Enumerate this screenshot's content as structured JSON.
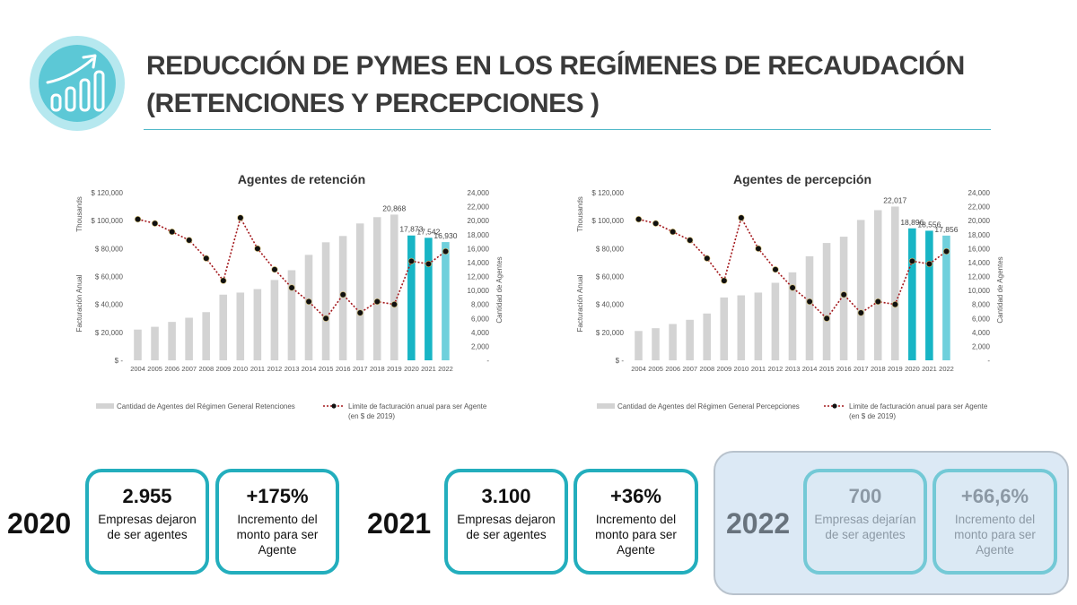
{
  "header": {
    "title_line1": "REDUCCIÓN DE PYMES EN LOS REGÍMENES DE RECAUDACIÓN",
    "title_line2": "(RETENCIONES Y PERCEPCIONES )",
    "accent": "#23aebd",
    "icon": "growth-chart-icon"
  },
  "chart_data": [
    {
      "type": "bar",
      "title": "Agentes de retención",
      "categories": [
        "2004",
        "2005",
        "2006",
        "2007",
        "2008",
        "2009",
        "2010",
        "2011",
        "2012",
        "2013",
        "2014",
        "2015",
        "2016",
        "2017",
        "2018",
        "2019",
        "2020",
        "2021",
        "2022"
      ],
      "left_axis": {
        "label": "Facturación Anual",
        "units_label": "Thousands",
        "ticks": [
          "$ -",
          "$ 20,000",
          "$ 40,000",
          "$ 60,000",
          "$ 80,000",
          "$ 100,000",
          "$ 120,000"
        ],
        "range": [
          0,
          120000
        ]
      },
      "right_axis": {
        "label": "Cantidad de Agentes",
        "ticks": [
          "-",
          "2,000",
          "4,000",
          "6,000",
          "8,000",
          "10,000",
          "12,000",
          "14,000",
          "16,000",
          "18,000",
          "20,000",
          "22,000",
          "24,000"
        ],
        "range": [
          0,
          24000
        ]
      },
      "series": [
        {
          "name": "Cantidad de Agentes del Régimen General Retenciones",
          "kind": "bar",
          "axis": "right",
          "values": [
            4400,
            4800,
            5500,
            6100,
            6900,
            9400,
            9700,
            10200,
            11500,
            12900,
            15100,
            16900,
            17800,
            19600,
            20500,
            20868,
            17873,
            17542,
            16930
          ],
          "labels": [
            "",
            "",
            "",
            "",
            "",
            "",
            "",
            "",
            "",
            "",
            "",
            "",
            "",
            "",
            "",
            "20,868",
            "17,873",
            "17,542",
            "16,930"
          ],
          "colors": [
            "#d3d3d3",
            "#d3d3d3",
            "#d3d3d3",
            "#d3d3d3",
            "#d3d3d3",
            "#d3d3d3",
            "#d3d3d3",
            "#d3d3d3",
            "#d3d3d3",
            "#d3d3d3",
            "#d3d3d3",
            "#d3d3d3",
            "#d3d3d3",
            "#d3d3d3",
            "#d3d3d3",
            "#d3d3d3",
            "#18b5c5",
            "#18b5c5",
            "#6fd0dc"
          ]
        },
        {
          "name": "Limite de facturación anual para ser Agente",
          "name2": "(en $ de 2019)",
          "kind": "line",
          "axis": "left",
          "values": [
            101000,
            98000,
            92000,
            86000,
            73000,
            57000,
            102000,
            80000,
            65000,
            52000,
            42000,
            30000,
            47000,
            34000,
            42000,
            40000,
            71000,
            69000,
            78000
          ]
        }
      ]
    },
    {
      "type": "bar",
      "title": "Agentes de percepción",
      "categories": [
        "2004",
        "2005",
        "2006",
        "2007",
        "2008",
        "2009",
        "2010",
        "2011",
        "2012",
        "2013",
        "2014",
        "2015",
        "2016",
        "2017",
        "2018",
        "2019",
        "2020",
        "2021",
        "2022"
      ],
      "left_axis": {
        "label": "Facturación Anual",
        "units_label": "Thousands",
        "ticks": [
          "$ -",
          "$ 20,000",
          "$ 40,000",
          "$ 60,000",
          "$ 80,000",
          "$ 100,000",
          "$ 120,000"
        ],
        "range": [
          0,
          120000
        ]
      },
      "right_axis": {
        "label": "Cantidad de Agentes",
        "ticks": [
          "-",
          "2,000",
          "4,000",
          "6,000",
          "8,000",
          "10,000",
          "12,000",
          "14,000",
          "16,000",
          "18,000",
          "20,000",
          "22,000",
          "24,000"
        ],
        "range": [
          0,
          24000
        ]
      },
      "series": [
        {
          "name": "Cantidad de Agentes del Régimen General Percepciones",
          "kind": "bar",
          "axis": "right",
          "values": [
            4200,
            4600,
            5200,
            5800,
            6700,
            9000,
            9300,
            9700,
            11100,
            12600,
            14900,
            16800,
            17700,
            20100,
            21500,
            22017,
            18896,
            18556,
            17856
          ],
          "labels": [
            "",
            "",
            "",
            "",
            "",
            "",
            "",
            "",
            "",
            "",
            "",
            "",
            "",
            "",
            "",
            "22,017",
            "18,896",
            "18,556",
            "17,856"
          ],
          "colors": [
            "#d3d3d3",
            "#d3d3d3",
            "#d3d3d3",
            "#d3d3d3",
            "#d3d3d3",
            "#d3d3d3",
            "#d3d3d3",
            "#d3d3d3",
            "#d3d3d3",
            "#d3d3d3",
            "#d3d3d3",
            "#d3d3d3",
            "#d3d3d3",
            "#d3d3d3",
            "#d3d3d3",
            "#d3d3d3",
            "#18b5c5",
            "#18b5c5",
            "#6fd0dc"
          ]
        },
        {
          "name": "Limite de facturación anual para ser Agente",
          "name2": "(en $ de 2019)",
          "kind": "line",
          "axis": "left",
          "values": [
            101000,
            98000,
            92000,
            86000,
            73000,
            57000,
            102000,
            80000,
            65000,
            52000,
            42000,
            30000,
            47000,
            34000,
            42000,
            40000,
            71000,
            69000,
            78000
          ]
        }
      ]
    }
  ],
  "summary": [
    {
      "year": "2020",
      "cards": [
        {
          "big": "2.955",
          "small": "Empresas dejaron de ser agentes"
        },
        {
          "big": "+175%",
          "small": "Incremento del monto para ser Agente"
        }
      ]
    },
    {
      "year": "2021",
      "cards": [
        {
          "big": "3.100",
          "small": "Empresas dejaron de ser agentes"
        },
        {
          "big": "+36%",
          "small": "Incremento del monto para ser Agente"
        }
      ]
    },
    {
      "year": "2022",
      "cards": [
        {
          "big": "700",
          "small": "Empresas dejarían de ser agentes"
        },
        {
          "big": "+66,6%",
          "small": "Incremento del monto para ser Agente"
        }
      ]
    }
  ]
}
